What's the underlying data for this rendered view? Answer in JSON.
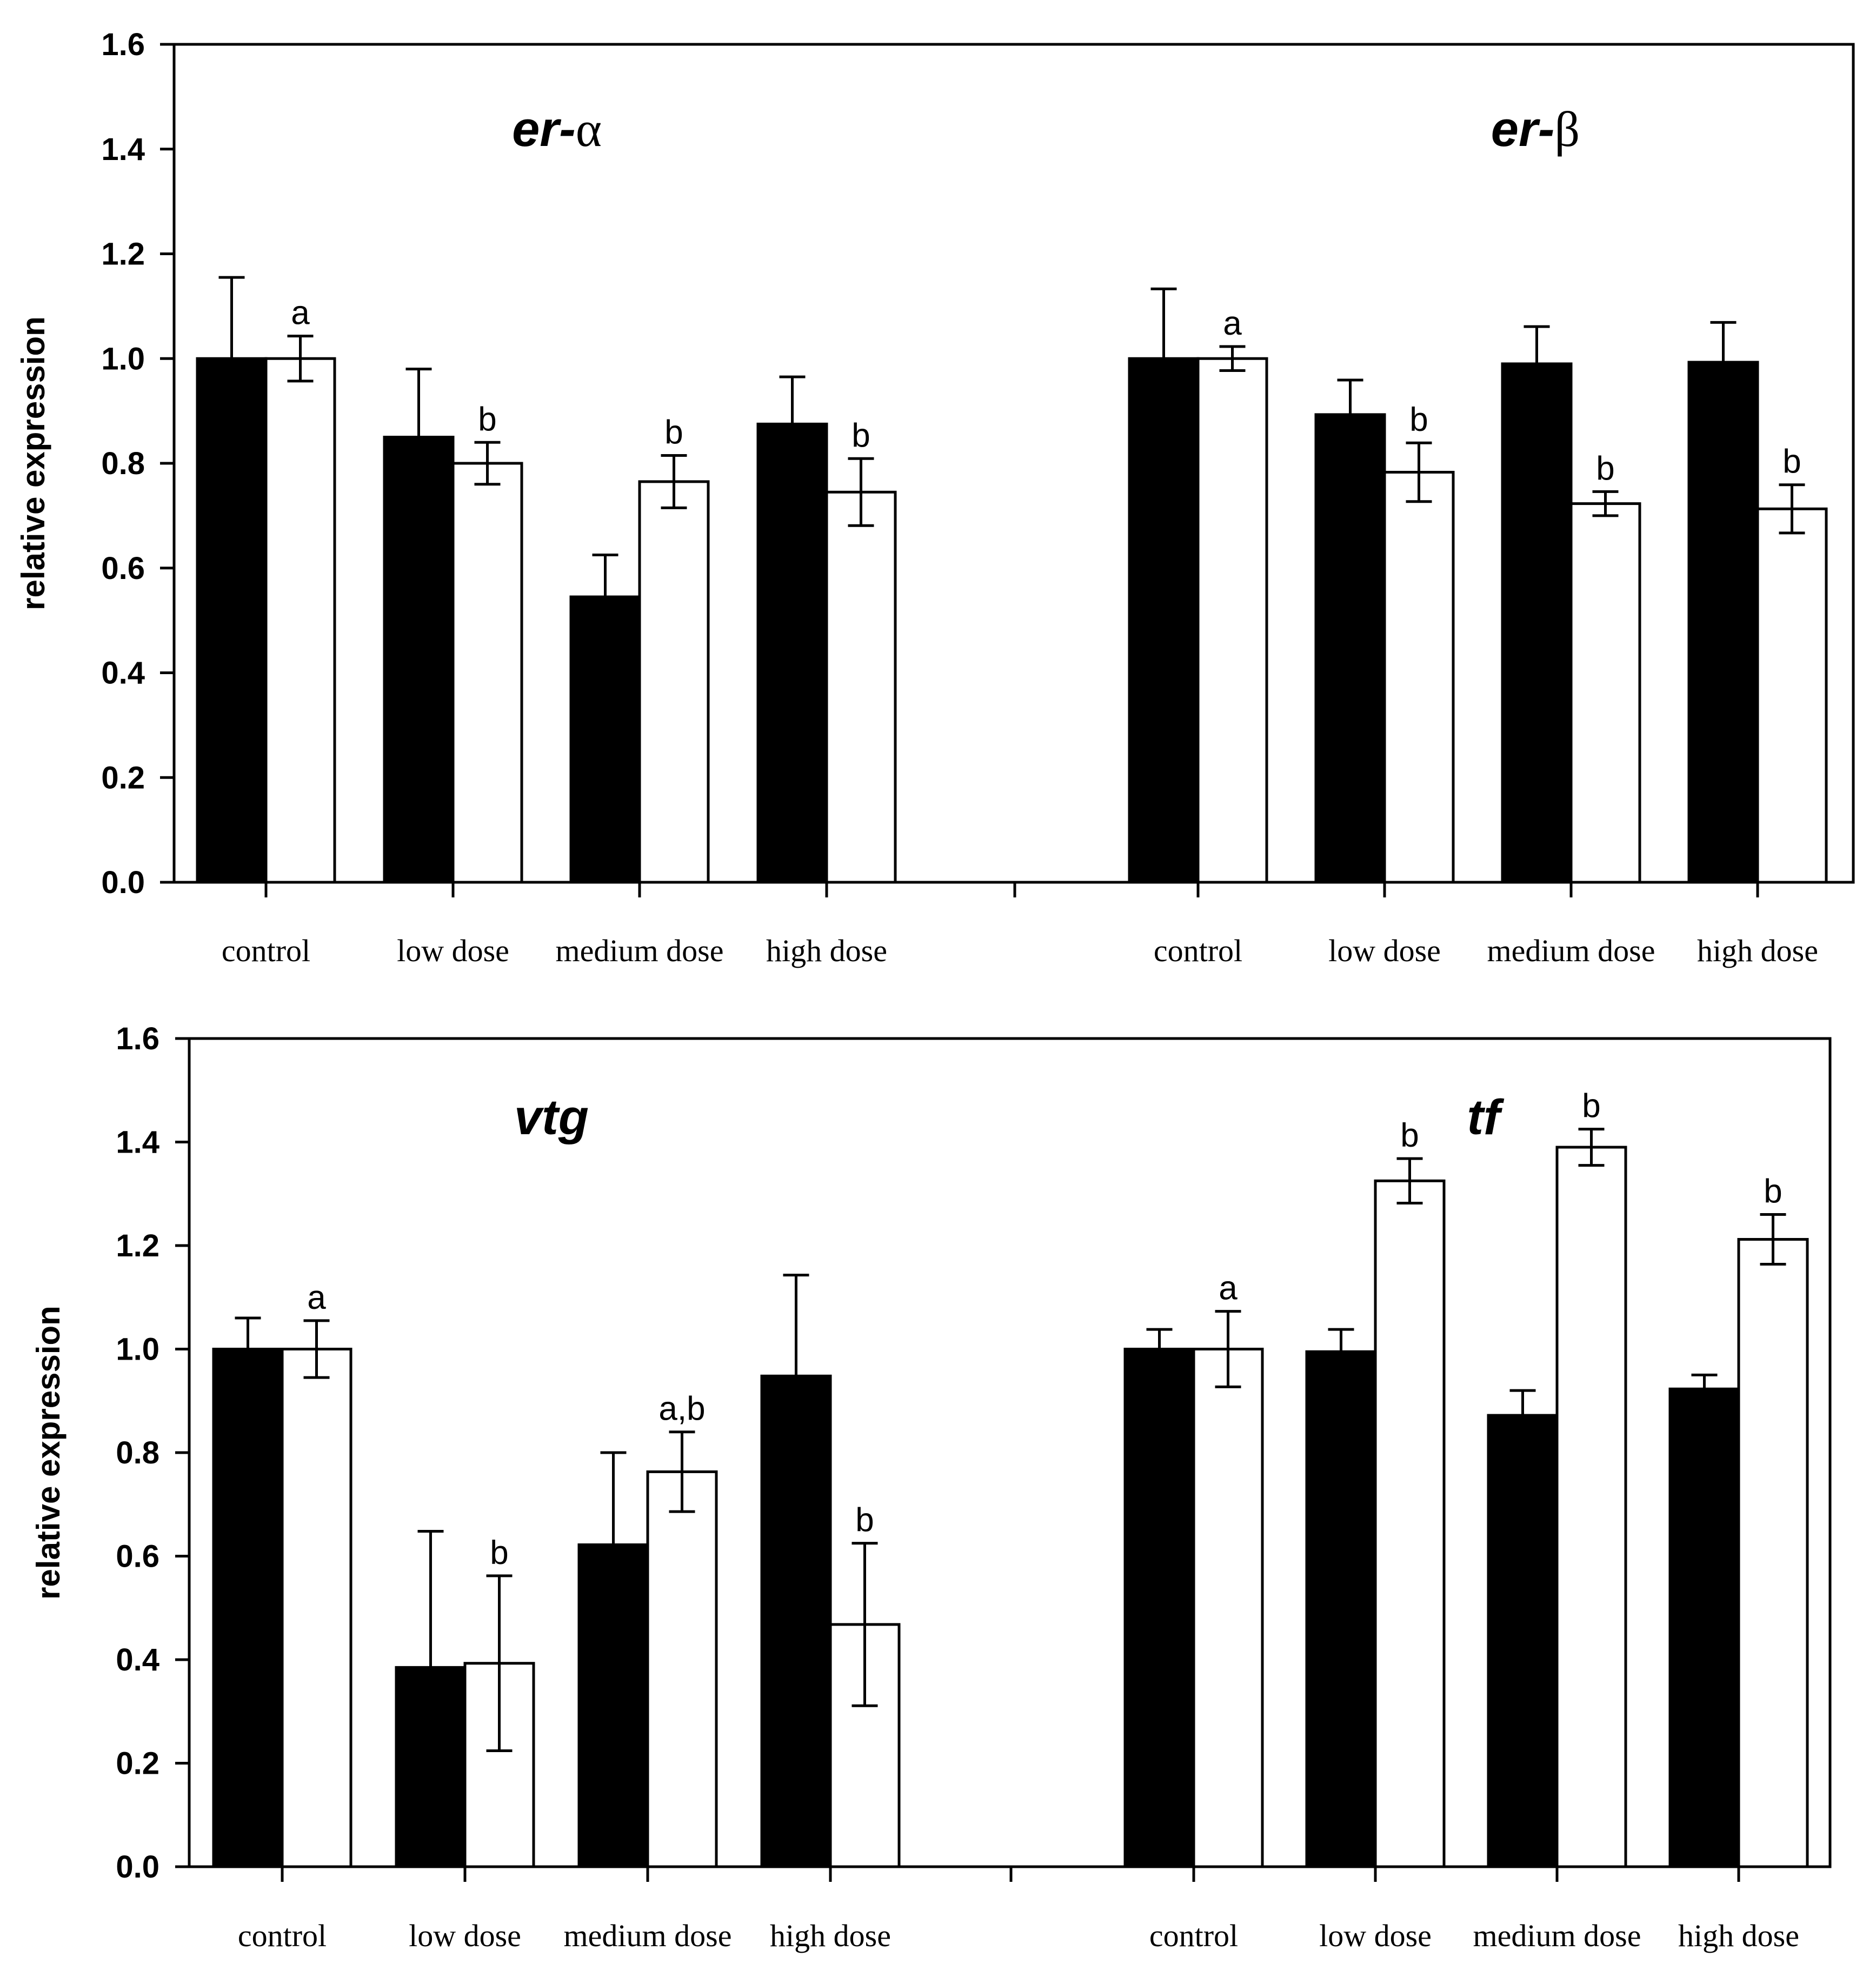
{
  "chart_data": [
    {
      "type": "bar",
      "title": "",
      "xlabel": "",
      "ylabel": "relative expression",
      "ylim": [
        0,
        1.6
      ],
      "yticks": [
        "0.0",
        "0.2",
        "0.4",
        "0.6",
        "0.8",
        "1.0",
        "1.2",
        "1.4",
        "1.6"
      ],
      "groups": [
        {
          "gene_prefix": "er-",
          "gene_suffix": "α",
          "categories": [
            "control",
            "low dose",
            "medium dose",
            "high dose"
          ],
          "series": [
            {
              "name": "filled",
              "color": "#000000",
              "values": [
                1.0,
                0.85,
                0.545,
                0.875
              ],
              "errors": [
                0.155,
                0.13,
                0.08,
                0.09
              ]
            },
            {
              "name": "open",
              "color": "#ffffff",
              "values": [
                1.0,
                0.8,
                0.765,
                0.745
              ],
              "errors": [
                0.043,
                0.04,
                0.05,
                0.064
              ]
            }
          ],
          "annotations": [
            "a",
            "b",
            "b",
            "b"
          ]
        },
        {
          "gene_prefix": "er-",
          "gene_suffix": "β",
          "categories": [
            "control",
            "low dose",
            "medium dose",
            "high dose"
          ],
          "series": [
            {
              "name": "filled",
              "color": "#000000",
              "values": [
                1.0,
                0.893,
                0.99,
                0.993
              ],
              "errors": [
                0.133,
                0.066,
                0.071,
                0.076
              ]
            },
            {
              "name": "open",
              "color": "#ffffff",
              "values": [
                1.0,
                0.783,
                0.723,
                0.713
              ],
              "errors": [
                0.023,
                0.056,
                0.023,
                0.046
              ]
            }
          ],
          "annotations": [
            "a",
            "b",
            "b",
            "b"
          ]
        }
      ]
    },
    {
      "type": "bar",
      "title": "",
      "xlabel": "",
      "ylabel": "relative expression",
      "ylim": [
        0,
        1.6
      ],
      "yticks": [
        "0.0",
        "0.2",
        "0.4",
        "0.6",
        "0.8",
        "1.0",
        "1.2",
        "1.4",
        "1.6"
      ],
      "groups": [
        {
          "gene_prefix": "vtg",
          "gene_suffix": "",
          "categories": [
            "control",
            "low dose",
            "medium dose",
            "high dose"
          ],
          "series": [
            {
              "name": "filled",
              "color": "#000000",
              "values": [
                1.0,
                0.385,
                0.622,
                0.948
              ],
              "errors": [
                0.06,
                0.263,
                0.178,
                0.195
              ]
            },
            {
              "name": "open",
              "color": "#ffffff",
              "values": [
                1.0,
                0.393,
                0.763,
                0.468
              ],
              "errors": [
                0.055,
                0.169,
                0.077,
                0.157
              ]
            }
          ],
          "annotations": [
            "a",
            "b",
            "a,b",
            "b"
          ]
        },
        {
          "gene_prefix": "tf",
          "gene_suffix": "",
          "categories": [
            "control",
            "low dose",
            "medium dose",
            "high dose"
          ],
          "series": [
            {
              "name": "filled",
              "color": "#000000",
              "values": [
                1.0,
                0.995,
                0.872,
                0.923
              ],
              "errors": [
                0.038,
                0.043,
                0.048,
                0.027
              ]
            },
            {
              "name": "open",
              "color": "#ffffff",
              "values": [
                1.0,
                1.325,
                1.39,
                1.212
              ],
              "errors": [
                0.073,
                0.043,
                0.035,
                0.048
              ]
            }
          ],
          "annotations": [
            "a",
            "b",
            "b",
            "b"
          ]
        }
      ]
    }
  ]
}
